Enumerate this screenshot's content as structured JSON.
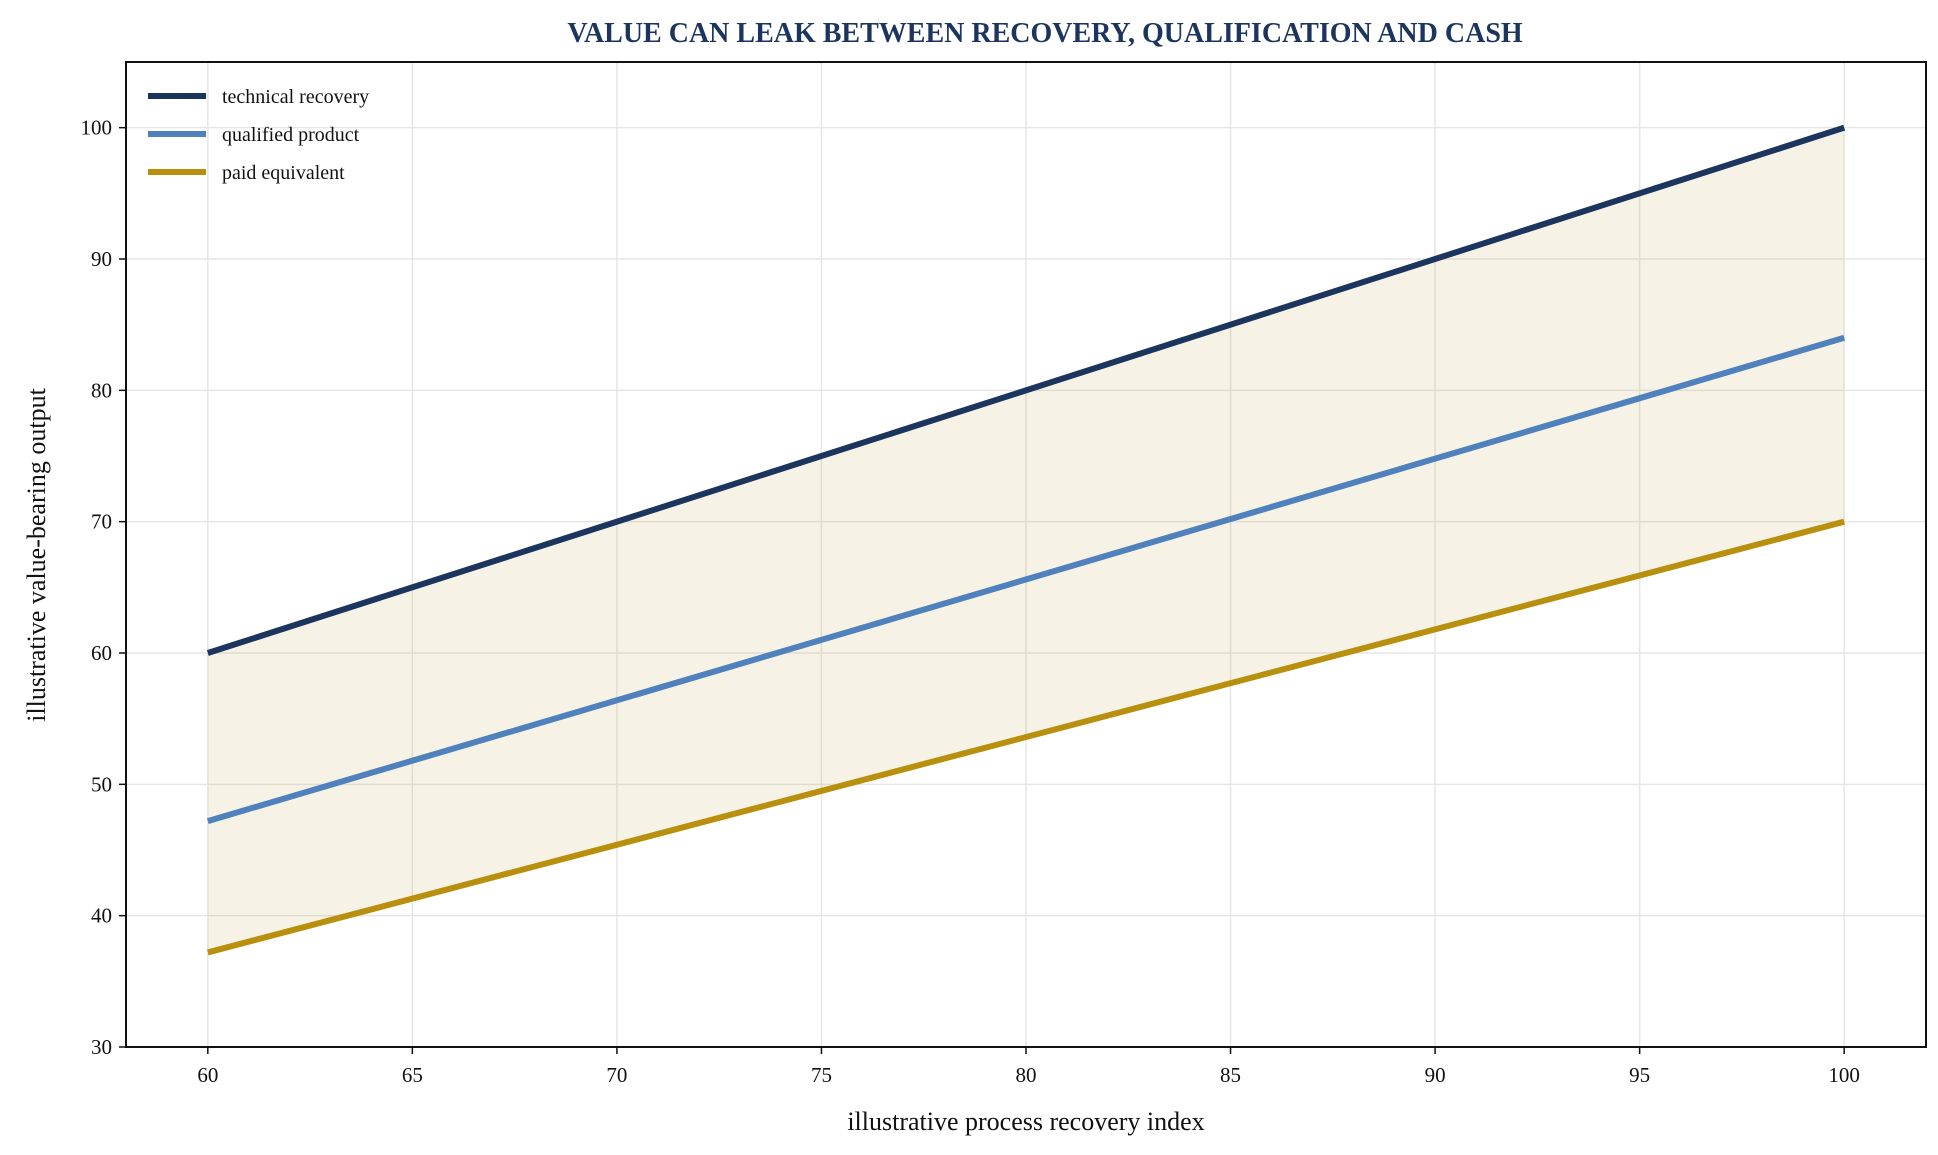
{
  "chart_data": {
    "type": "line",
    "title": "VALUE CAN LEAK BETWEEN RECOVERY, QUALIFICATION AND CASH",
    "xlabel": "illustrative process recovery index",
    "ylabel": "illustrative value-bearing output",
    "xlim": [
      58,
      102
    ],
    "ylim": [
      30,
      105
    ],
    "xticks": [
      60,
      65,
      70,
      75,
      80,
      85,
      90,
      95,
      100
    ],
    "yticks": [
      30,
      40,
      50,
      60,
      70,
      80,
      90,
      100
    ],
    "grid": true,
    "legend_position": "top-left",
    "fill_between": {
      "upper": "technical recovery",
      "lower": "paid equivalent",
      "color": "#b8962e"
    },
    "series": [
      {
        "name": "technical recovery",
        "color": "#1c355e",
        "x": [
          60,
          100
        ],
        "y": [
          60,
          100
        ]
      },
      {
        "name": "qualified product",
        "color": "#4f81bd",
        "x": [
          60,
          100
        ],
        "y": [
          47.2,
          84.0
        ]
      },
      {
        "name": "paid equivalent",
        "color": "#b8900e",
        "x": [
          60,
          100
        ],
        "y": [
          37.2,
          70.0
        ]
      }
    ]
  }
}
